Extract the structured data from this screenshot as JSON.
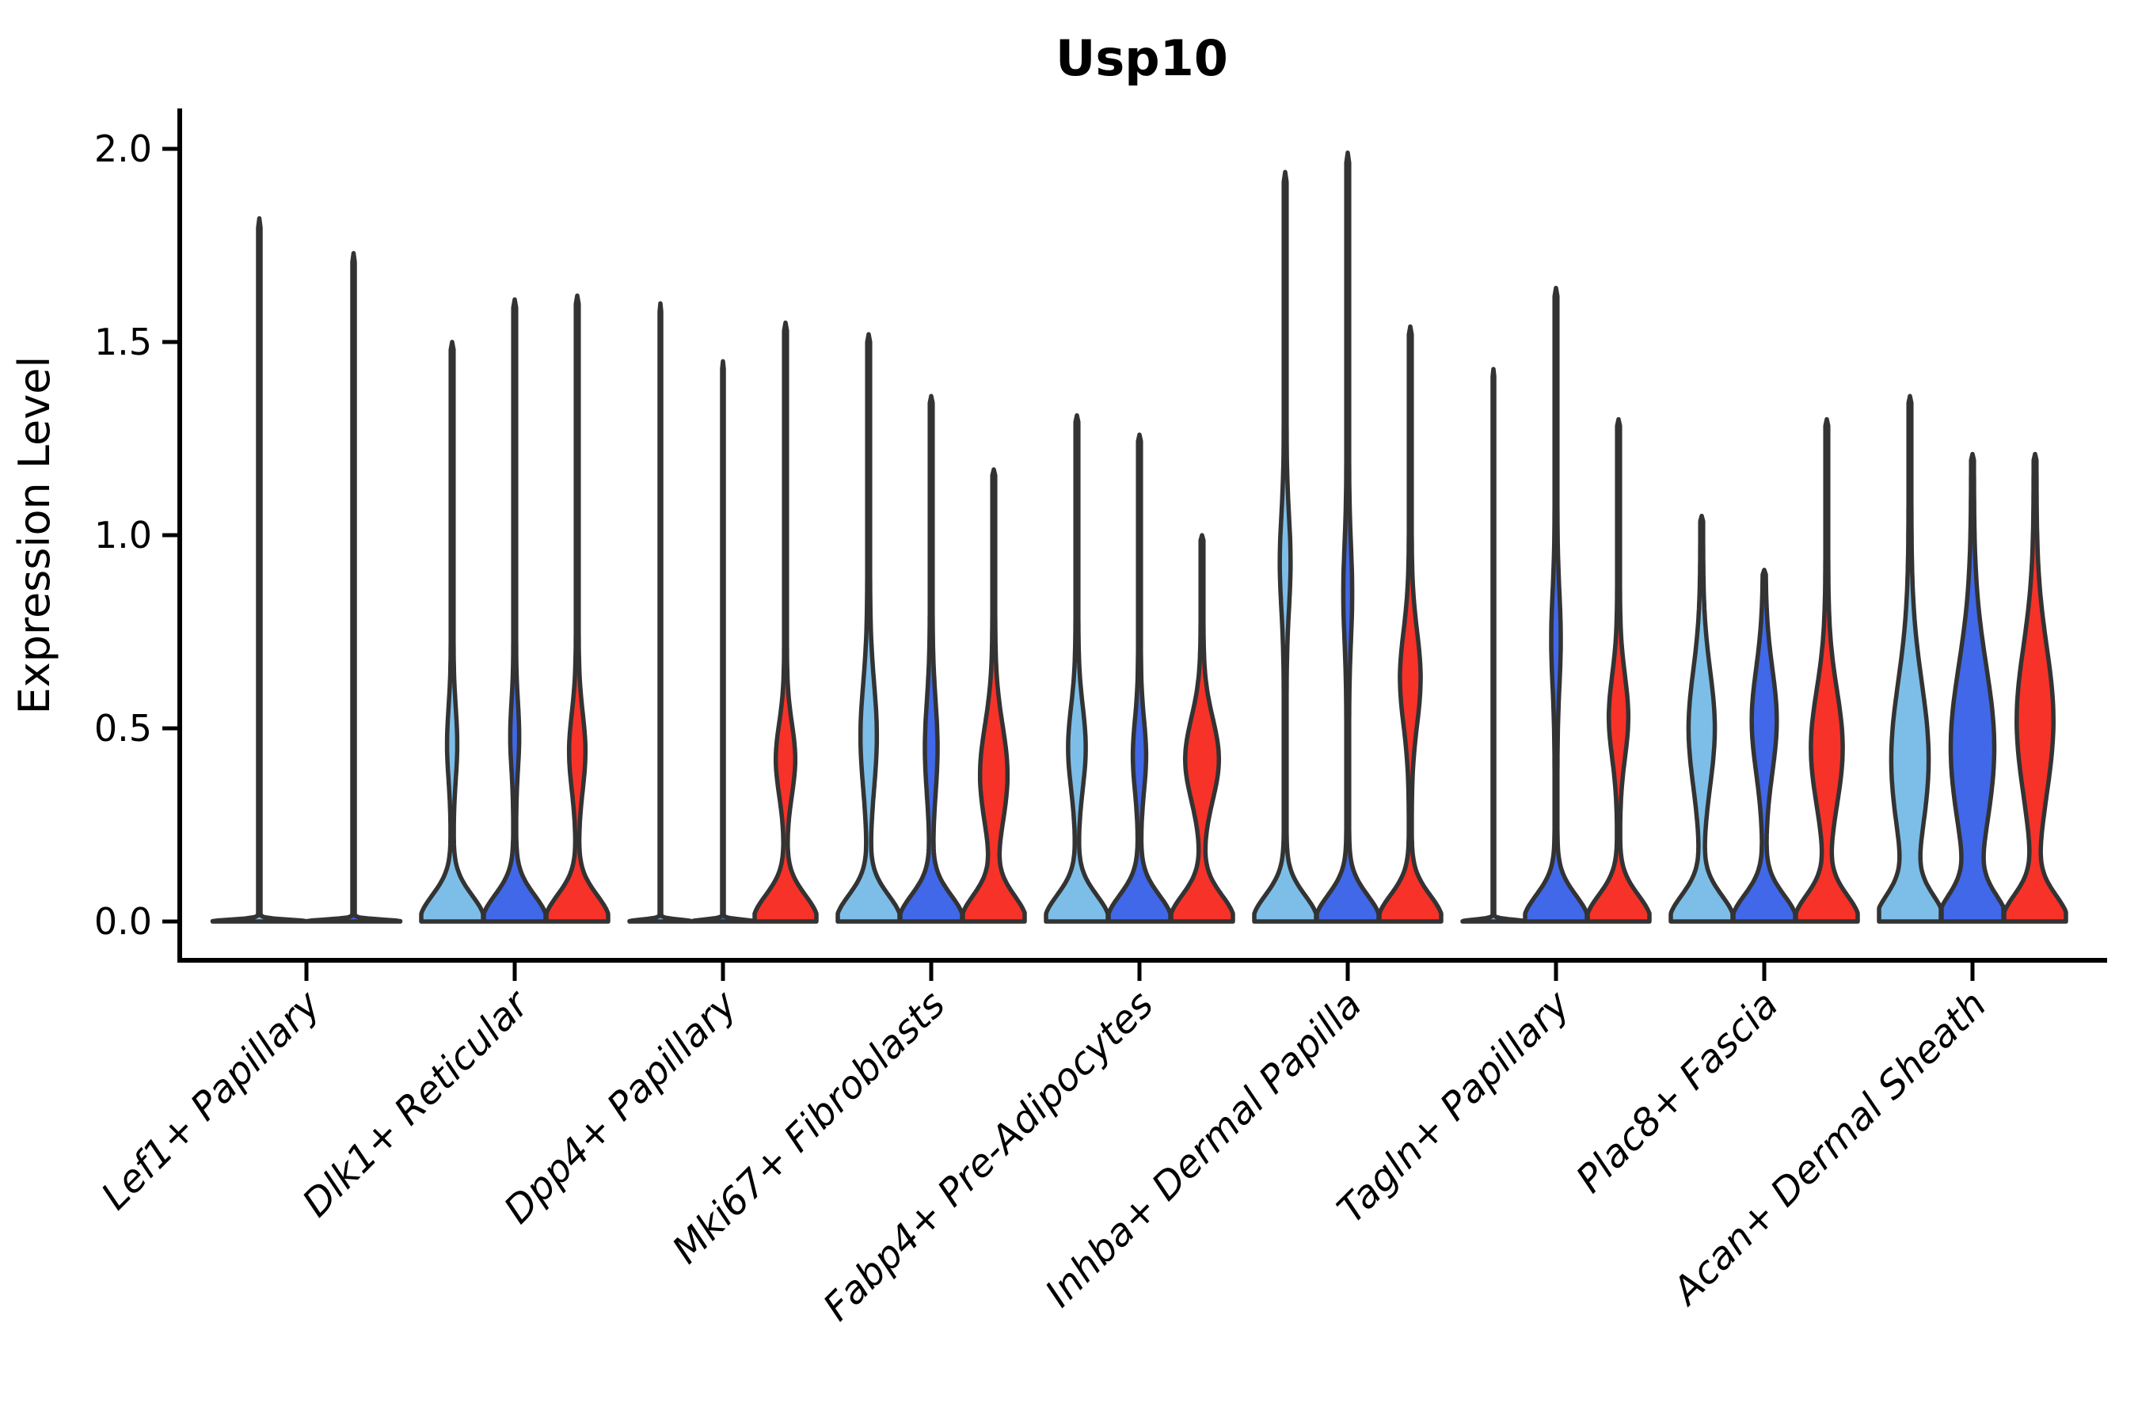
{
  "title": "Usp10",
  "ylabel": "Expression Level",
  "colors": {
    "series": [
      "#7DBEE8",
      "#4068E8",
      "#F73228"
    ],
    "outline": "#333333",
    "axis": "#000000"
  },
  "chart_data": {
    "type": "violin",
    "title": "Usp10",
    "ylabel": "Expression Level",
    "ylim": [
      0,
      2.05
    ],
    "grid": false,
    "legend": "none",
    "yticks": [
      {
        "value": 0.0,
        "label": "0.0"
      },
      {
        "value": 0.5,
        "label": "0.5"
      },
      {
        "value": 1.0,
        "label": "1.0"
      },
      {
        "value": 1.5,
        "label": "1.5"
      },
      {
        "value": 2.0,
        "label": "2.0"
      }
    ],
    "categories": [
      {
        "label": "Lef1+ Papillary",
        "violins": [
          {
            "series": 0,
            "max": 1.82,
            "thin": true
          },
          {
            "series": 1,
            "max": 1.73,
            "thin": true
          }
        ]
      },
      {
        "label": "Dlk1+ Reticular",
        "violins": [
          {
            "series": 0,
            "max": 1.5,
            "bulge_center": 0.46,
            "bulge_amp": 0.12,
            "bulge_sigma": 0.13
          },
          {
            "series": 1,
            "max": 1.61,
            "bulge_center": 0.48,
            "bulge_amp": 0.1,
            "bulge_sigma": 0.12
          },
          {
            "series": 2,
            "max": 1.62,
            "bulge_center": 0.44,
            "bulge_amp": 0.22,
            "bulge_sigma": 0.14
          }
        ]
      },
      {
        "label": "Dpp4+ Papillary",
        "violins": [
          {
            "series": 0,
            "max": 1.6,
            "thin": true
          },
          {
            "series": 1,
            "max": 1.45,
            "thin": true
          },
          {
            "series": 2,
            "max": 1.55,
            "bulge_center": 0.42,
            "bulge_amp": 0.27,
            "bulge_sigma": 0.13
          }
        ]
      },
      {
        "label": "Mki67+ Fibroblasts",
        "violins": [
          {
            "series": 0,
            "max": 1.52,
            "bulge_center": 0.48,
            "bulge_amp": 0.22,
            "bulge_sigma": 0.19
          },
          {
            "series": 1,
            "max": 1.36,
            "bulge_center": 0.45,
            "bulge_amp": 0.16,
            "bulge_sigma": 0.17
          },
          {
            "series": 2,
            "max": 1.17,
            "bulge_center": 0.38,
            "bulge_amp": 0.4,
            "bulge_sigma": 0.18
          }
        ]
      },
      {
        "label": "Fabp4+ Pre-Adipocytes",
        "violins": [
          {
            "series": 0,
            "max": 1.31,
            "bulge_center": 0.45,
            "bulge_amp": 0.24,
            "bulge_sigma": 0.15
          },
          {
            "series": 1,
            "max": 1.26,
            "bulge_center": 0.43,
            "bulge_amp": 0.17,
            "bulge_sigma": 0.13
          },
          {
            "series": 2,
            "max": 1.0,
            "bulge_center": 0.42,
            "bulge_amp": 0.5,
            "bulge_sigma": 0.15
          }
        ]
      },
      {
        "label": "Inhba+ Dermal Papilla",
        "violins": [
          {
            "series": 0,
            "max": 1.94,
            "bulge_center": 0.93,
            "bulge_amp": 0.13,
            "bulge_sigma": 0.17
          },
          {
            "series": 1,
            "max": 1.99,
            "bulge_center": 0.85,
            "bulge_amp": 0.1,
            "bulge_sigma": 0.17
          },
          {
            "series": 2,
            "max": 1.54,
            "bulge_center": 0.63,
            "bulge_amp": 0.29,
            "bulge_sigma": 0.17
          }
        ]
      },
      {
        "label": "Tagln+ Papillary",
        "violins": [
          {
            "series": 0,
            "max": 1.43,
            "thin": true
          },
          {
            "series": 1,
            "max": 1.64,
            "bulge_center": 0.73,
            "bulge_amp": 0.11,
            "bulge_sigma": 0.17
          },
          {
            "series": 2,
            "max": 1.3,
            "bulge_center": 0.53,
            "bulge_amp": 0.27,
            "bulge_sigma": 0.15
          }
        ]
      },
      {
        "label": "Plac8+ Fascia",
        "violins": [
          {
            "series": 0,
            "max": 1.05,
            "bulge_center": 0.5,
            "bulge_amp": 0.38,
            "bulge_sigma": 0.21
          },
          {
            "series": 1,
            "max": 0.91,
            "bulge_center": 0.52,
            "bulge_amp": 0.36,
            "bulge_sigma": 0.19
          },
          {
            "series": 2,
            "max": 1.3,
            "bulge_center": 0.45,
            "bulge_amp": 0.47,
            "bulge_sigma": 0.21
          }
        ]
      },
      {
        "label": "Acan+ Dermal Sheath",
        "violins": [
          {
            "series": 0,
            "max": 1.36,
            "bulge_center": 0.42,
            "bulge_amp": 0.56,
            "bulge_sigma": 0.28
          },
          {
            "series": 1,
            "max": 1.21,
            "bulge_center": 0.45,
            "bulge_amp": 0.66,
            "bulge_sigma": 0.3
          },
          {
            "series": 2,
            "max": 1.21,
            "bulge_center": 0.52,
            "bulge_amp": 0.55,
            "bulge_sigma": 0.27
          }
        ]
      }
    ]
  }
}
